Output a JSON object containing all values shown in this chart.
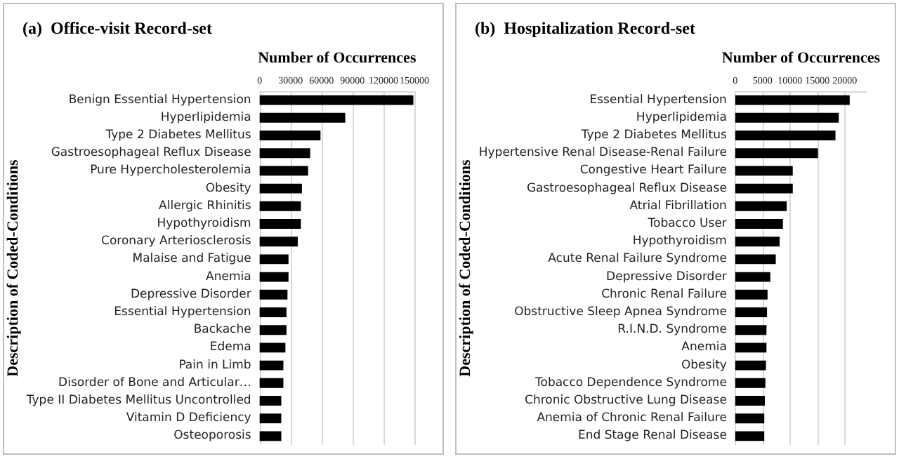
{
  "chart_data": [
    {
      "type": "bar",
      "orientation": "horizontal",
      "title": "(a)  Office-visit Record-set",
      "xlabel": "Number of Occurrences",
      "ylabel": "Description of Coded-Conditions",
      "categories": [
        "Benign Essential Hypertension",
        "Hyperlipidemia",
        "Type 2 Diabetes Mellitus",
        "Gastroesophageal Reflux Disease",
        "Pure Hypercholesterolemia",
        "Obesity",
        "Allergic Rhinitis",
        "Hypothyroidism",
        "Coronary Arteriosclerosis",
        "Malaise and Fatigue",
        "Anemia",
        "Depressive Disorder",
        "Essential Hypertension",
        "Backache",
        "Edema",
        "Pain in Limb",
        "Disorder of Bone and Articular…",
        "Type II Diabetes Mellitus Uncontrolled",
        "Vitamin D Deficiency",
        "Osteoporosis"
      ],
      "values": [
        149000,
        83000,
        59000,
        49000,
        47000,
        41000,
        40000,
        40000,
        37000,
        28000,
        28000,
        27000,
        26000,
        26000,
        25000,
        23000,
        23000,
        21000,
        21000,
        21000
      ],
      "color": "#000000",
      "xlim": [
        0,
        150000
      ],
      "xticks": [
        0,
        30000,
        60000,
        90000,
        120000,
        150000
      ],
      "grid": "x"
    },
    {
      "type": "bar",
      "orientation": "horizontal",
      "title": "(b)  Hospitalization Record-set",
      "xlabel": "Number of Occurrences",
      "ylabel": "Description of Coded-Conditions",
      "categories": [
        "Essential Hypertension",
        "Hyperlipidemia",
        "Type 2 Diabetes Mellitus",
        "Hypertensive Renal Disease-Renal Failure",
        "Congestive Heart Failure",
        "Gastroesophageal Reflux Disease",
        "Atrial Fibrillation",
        "Tobacco User",
        "Hypothyroidism",
        "Acute Renal Failure Syndrome",
        "Depressive Disorder",
        "Chronic Renal Failure",
        "Obstructive Sleep Apnea Syndrome",
        "R.I.N.D. Syndrome",
        "Anemia",
        "Obesity",
        "Tobacco Dependence Syndrome",
        "Chronic Obstructive Lung Disease",
        "Anemia of Chronic Renal Failure",
        "End Stage Renal Disease"
      ],
      "values": [
        20900,
        18900,
        18300,
        15100,
        10500,
        10500,
        9400,
        8700,
        8100,
        7400,
        6400,
        5900,
        5800,
        5700,
        5700,
        5600,
        5500,
        5400,
        5300,
        5300
      ],
      "color": "#000000",
      "xlim": [
        0,
        24000
      ],
      "xticks": [
        0,
        5000,
        10000,
        15000,
        20000
      ],
      "grid": "x"
    }
  ]
}
